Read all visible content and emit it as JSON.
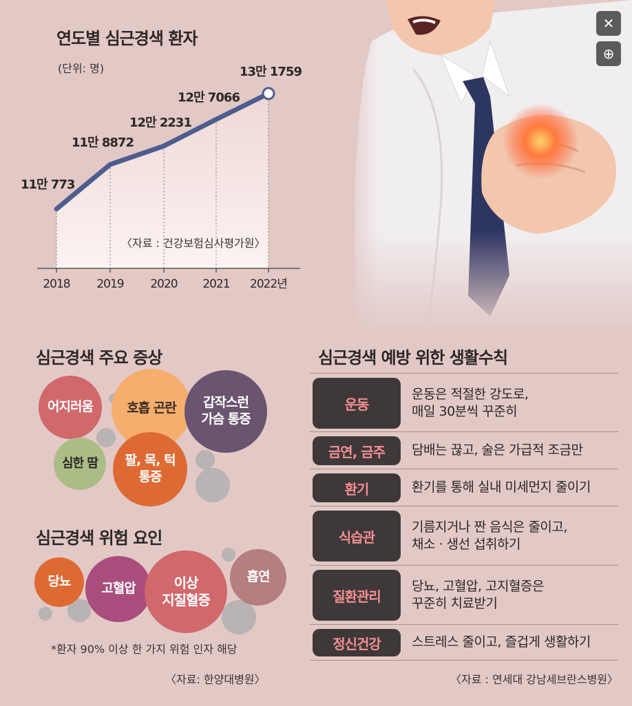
{
  "controls": {
    "close_label": "✕",
    "zoom_label": "⊕"
  },
  "line_chart": {
    "title": "연도별 심근경색 환자",
    "unit": "(단위: 명)",
    "source": "〈자료 : 건강보험심사평가원〉"
  },
  "chart_data": {
    "type": "line",
    "title": "연도별 심근경색 환자",
    "x": [
      "2018",
      "2019",
      "2020",
      "2021",
      "2022년"
    ],
    "values": [
      110773,
      118872,
      122231,
      127066,
      131759
    ],
    "value_labels": [
      "11만 773",
      "11만 8872",
      "12만 2231",
      "12만 7066",
      "13만 1759"
    ],
    "ylim": [
      100000,
      140000
    ],
    "grid": false,
    "series_color": "#4d5d8f"
  },
  "symptoms": {
    "title": "심근경색 주요 증상",
    "items": [
      "어지러움",
      "호흡 곤란",
      "갑작스런\n가슴 통증",
      "심한 땀",
      "팔, 목, 턱\n통증"
    ]
  },
  "risk": {
    "title": "심근경색 위험 요인",
    "items": [
      "당뇨",
      "고혈압",
      "이상\n지질혈증",
      "흡연"
    ],
    "footnote": "*환자 90% 이상 한 가지 위험 인자 해당",
    "source": "〈자료: 한양대병원〉"
  },
  "prevention": {
    "title": "심근경색 예방 위한 생활수칙",
    "rows": [
      {
        "label": "운동",
        "desc": "운동은 적절한 강도로,\n매일 30분씩 꾸준히"
      },
      {
        "label": "금연, 금주",
        "desc": "담배는 끊고, 술은 가급적 조금만"
      },
      {
        "label": "환기",
        "desc": "환기를 통해 실내 미세먼지 줄이기"
      },
      {
        "label": "식습관",
        "desc": "기름지거나 짠 음식은 줄이고,\n채소 · 생선 섭취하기"
      },
      {
        "label": "질환관리",
        "desc": "당뇨, 고혈압, 고지혈증은\n꾸준히 치료받기"
      },
      {
        "label": "정신건강",
        "desc": "스트레스 줄이고, 즐겁게 생활하기"
      }
    ],
    "source": "〈자료 : 연세대 강남세브란스병원〉"
  },
  "colors": {
    "background": "#e2c9c6",
    "line": "#4d5d8f",
    "label_bg": "#3f3839",
    "label_text": "#f28f93"
  }
}
